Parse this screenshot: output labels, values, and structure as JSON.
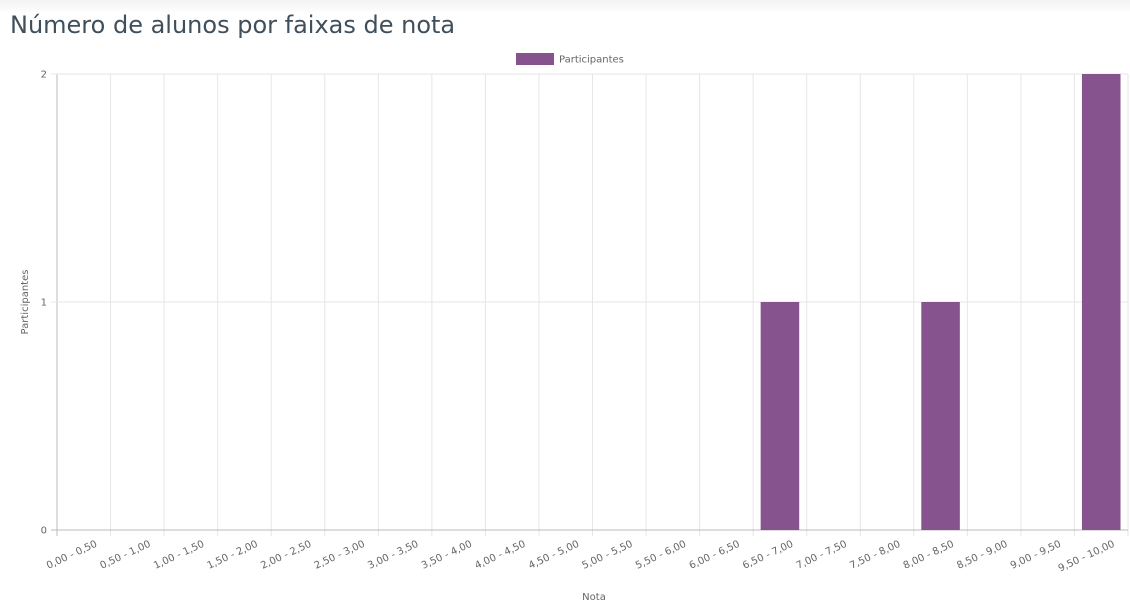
{
  "chart_data": {
    "type": "bar",
    "title": "Número de alunos por faixas de nota",
    "xlabel": "Nota",
    "ylabel": "Participantes",
    "categories": [
      "0,00 - 0,50",
      "0,50 - 1,00",
      "1,00 - 1,50",
      "1,50 - 2,00",
      "2,00 - 2,50",
      "2,50 - 3,00",
      "3,00 - 3,50",
      "3,50 - 4,00",
      "4,00 - 4,50",
      "4,50 - 5,00",
      "5,00 - 5,50",
      "5,50 - 6,00",
      "6,00 - 6,50",
      "6,50 - 7,00",
      "7,00 - 7,50",
      "7,50 - 8,00",
      "8,00 - 8,50",
      "8,50 - 9,00",
      "9,00 - 9,50",
      "9,50 - 10,00"
    ],
    "series": [
      {
        "name": "Participantes",
        "color": "#86538f",
        "values": [
          0,
          0,
          0,
          0,
          0,
          0,
          0,
          0,
          0,
          0,
          0,
          0,
          0,
          1,
          0,
          0,
          1,
          0,
          0,
          2
        ]
      }
    ],
    "ylim": [
      0,
      2
    ],
    "yticks": [
      0,
      1,
      2
    ],
    "grid": true,
    "legend": "top"
  }
}
